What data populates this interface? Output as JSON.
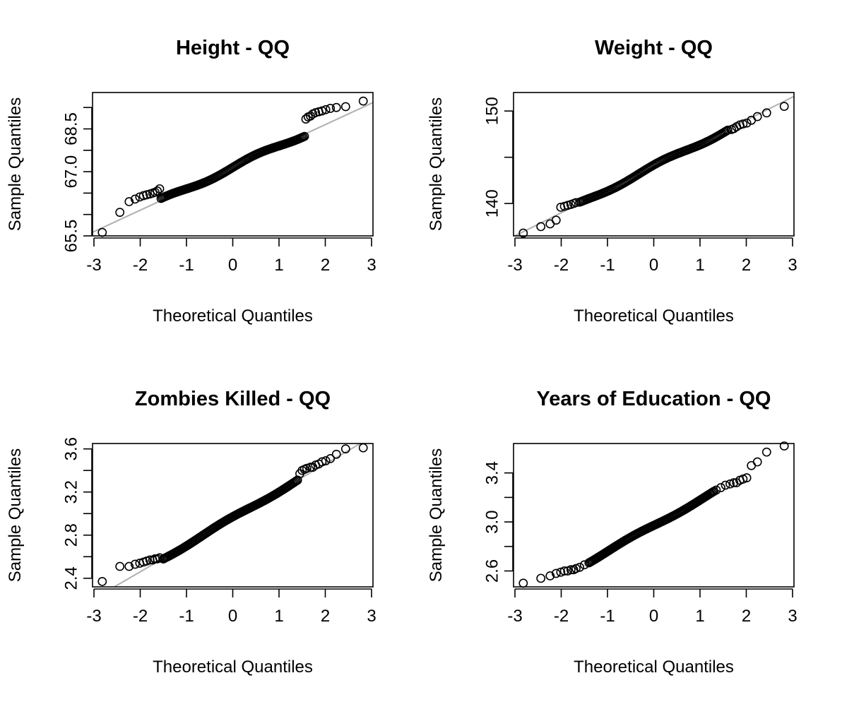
{
  "chart_data": [
    {
      "type": "scatter",
      "title": "Height - QQ",
      "xlabel": "Theoretical Quantiles",
      "ylabel": "Sample Quantiles",
      "xlim": [
        -3,
        3
      ],
      "ylim": [
        65.5,
        68.85
      ],
      "x_ticks": [
        "-3",
        "-2",
        "-1",
        "0",
        "1",
        "2",
        "3"
      ],
      "y_tick_values": [
        65.5,
        66.0,
        66.5,
        67.0,
        67.5,
        68.0,
        68.5
      ],
      "y_tick_labels": [
        "65.5",
        "",
        "",
        "67.0",
        "",
        "68.5",
        ""
      ],
      "reference_line": {
        "intercept": 67.1,
        "slope": 0.5
      },
      "low_tail": [
        [
          -2.82,
          65.58
        ],
        [
          -2.44,
          66.05
        ],
        [
          -2.24,
          66.3
        ],
        [
          -2.11,
          66.36
        ],
        [
          -2.01,
          66.41
        ],
        [
          -1.93,
          66.44
        ],
        [
          -1.86,
          66.46
        ],
        [
          -1.79,
          66.48
        ],
        [
          -1.73,
          66.5
        ],
        [
          -1.68,
          66.52
        ],
        [
          -1.63,
          66.55
        ],
        [
          -1.58,
          66.6
        ]
      ],
      "high_tail": [
        [
          1.58,
          68.23
        ],
        [
          1.63,
          68.28
        ],
        [
          1.68,
          68.3
        ],
        [
          1.73,
          68.35
        ],
        [
          1.79,
          68.38
        ],
        [
          1.86,
          68.4
        ],
        [
          1.93,
          68.42
        ],
        [
          2.01,
          68.45
        ],
        [
          2.11,
          68.48
        ],
        [
          2.24,
          68.5
        ],
        [
          2.44,
          68.52
        ],
        [
          2.82,
          68.65
        ]
      ],
      "body": {
        "range": [
          -1.55,
          1.55
        ],
        "count": 110,
        "intercept": 67.1,
        "slope": 0.5,
        "wiggle": 0.05
      }
    },
    {
      "type": "scatter",
      "title": "Weight - QQ",
      "xlabel": "Theoretical Quantiles",
      "ylabel": "Sample Quantiles",
      "xlim": [
        -3,
        3
      ],
      "ylim": [
        136.5,
        152.0
      ],
      "x_ticks": [
        "-3",
        "-2",
        "-1",
        "0",
        "1",
        "2",
        "3"
      ],
      "y_tick_values": [
        140,
        145,
        150
      ],
      "y_tick_labels": [
        "140",
        "",
        "150"
      ],
      "reference_line": {
        "intercept": 144.0,
        "slope": 2.5
      },
      "low_tail": [
        [
          -2.82,
          136.8
        ],
        [
          -2.44,
          137.5
        ],
        [
          -2.24,
          137.8
        ],
        [
          -2.11,
          138.2
        ],
        [
          -2.01,
          139.6
        ],
        [
          -1.93,
          139.7
        ],
        [
          -1.86,
          139.8
        ],
        [
          -1.79,
          139.9
        ],
        [
          -1.73,
          140.0
        ],
        [
          -1.68,
          140.1
        ]
      ],
      "high_tail": [
        [
          1.68,
          148.0
        ],
        [
          1.73,
          148.1
        ],
        [
          1.79,
          148.3
        ],
        [
          1.86,
          148.5
        ],
        [
          1.93,
          148.6
        ],
        [
          2.01,
          148.7
        ],
        [
          2.11,
          149.0
        ],
        [
          2.24,
          149.4
        ],
        [
          2.44,
          149.8
        ],
        [
          2.82,
          150.5
        ]
      ],
      "body": {
        "range": [
          -1.6,
          1.6
        ],
        "count": 110,
        "intercept": 144.0,
        "slope": 2.5,
        "wiggle": 0.2
      }
    },
    {
      "type": "scatter",
      "title": "Zombies Killed - QQ",
      "xlabel": "Theoretical Quantiles",
      "ylabel": "Sample Quantiles",
      "xlim": [
        -3,
        3
      ],
      "ylim": [
        2.32,
        3.65
      ],
      "x_ticks": [
        "-3",
        "-2",
        "-1",
        "0",
        "1",
        "2",
        "3"
      ],
      "y_tick_values": [
        2.4,
        2.6,
        2.8,
        3.0,
        3.2,
        3.4,
        3.6
      ],
      "y_tick_labels": [
        "2.4",
        "",
        "2.8",
        "",
        "3.2",
        "",
        "3.6"
      ],
      "reference_line": {
        "intercept": 2.96,
        "slope": 0.25
      },
      "low_tail": [
        [
          -2.82,
          2.37
        ],
        [
          -2.44,
          2.51
        ],
        [
          -2.24,
          2.51
        ],
        [
          -2.11,
          2.53
        ],
        [
          -2.01,
          2.54
        ],
        [
          -1.93,
          2.55
        ],
        [
          -1.86,
          2.56
        ],
        [
          -1.79,
          2.57
        ],
        [
          -1.73,
          2.57
        ],
        [
          -1.68,
          2.58
        ],
        [
          -1.63,
          2.58
        ],
        [
          -1.58,
          2.59
        ]
      ],
      "high_tail": [
        [
          1.45,
          3.37
        ],
        [
          1.5,
          3.4
        ],
        [
          1.55,
          3.41
        ],
        [
          1.6,
          3.42
        ],
        [
          1.68,
          3.43
        ],
        [
          1.73,
          3.43
        ],
        [
          1.79,
          3.45
        ],
        [
          1.86,
          3.46
        ],
        [
          1.93,
          3.48
        ],
        [
          2.01,
          3.49
        ],
        [
          2.11,
          3.51
        ],
        [
          2.24,
          3.55
        ],
        [
          2.44,
          3.6
        ],
        [
          2.82,
          3.61
        ]
      ],
      "body": {
        "range": [
          -1.5,
          1.4
        ],
        "count": 110,
        "intercept": 2.96,
        "slope": 0.25,
        "wiggle": 0.012
      }
    },
    {
      "type": "scatter",
      "title": "Years of Education - QQ",
      "xlabel": "Theoretical Quantiles",
      "ylabel": "Sample Quantiles",
      "xlim": [
        -3,
        3
      ],
      "ylim": [
        2.47,
        3.64
      ],
      "x_ticks": [
        "-3",
        "-2",
        "-1",
        "0",
        "1",
        "2",
        "3"
      ],
      "y_tick_values": [
        2.6,
        2.8,
        3.0,
        3.2,
        3.4
      ],
      "y_tick_labels": [
        "2.6",
        "",
        "3.0",
        "",
        "3.4"
      ],
      "reference_line": null,
      "low_tail": [
        [
          -2.82,
          2.5
        ],
        [
          -2.44,
          2.54
        ],
        [
          -2.24,
          2.56
        ],
        [
          -2.11,
          2.58
        ],
        [
          -2.01,
          2.59
        ],
        [
          -1.93,
          2.6
        ],
        [
          -1.86,
          2.6
        ],
        [
          -1.79,
          2.61
        ],
        [
          -1.73,
          2.61
        ],
        [
          -1.68,
          2.62
        ],
        [
          -1.6,
          2.63
        ],
        [
          -1.5,
          2.65
        ]
      ],
      "high_tail": [
        [
          1.35,
          3.26
        ],
        [
          1.45,
          3.28
        ],
        [
          1.55,
          3.3
        ],
        [
          1.65,
          3.31
        ],
        [
          1.73,
          3.32
        ],
        [
          1.79,
          3.32
        ],
        [
          1.86,
          3.34
        ],
        [
          1.93,
          3.35
        ],
        [
          2.01,
          3.36
        ],
        [
          2.11,
          3.46
        ],
        [
          2.24,
          3.49
        ],
        [
          2.44,
          3.57
        ],
        [
          2.82,
          3.62
        ]
      ],
      "body": {
        "range": [
          -1.4,
          1.3
        ],
        "count": 110,
        "intercept": 2.97,
        "slope": 0.21,
        "wiggle": 0.01
      }
    }
  ]
}
